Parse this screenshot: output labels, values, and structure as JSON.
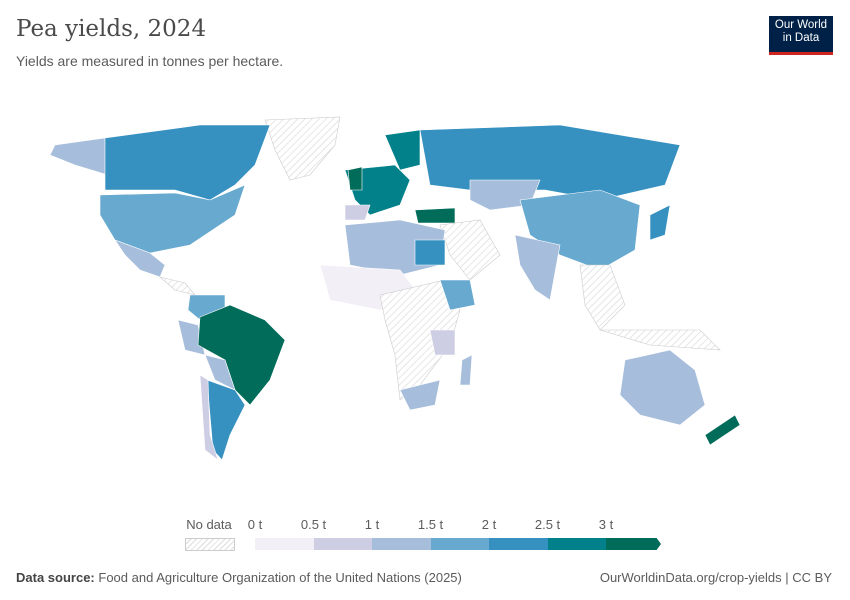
{
  "header": {
    "title": "Pea yields, 2024",
    "subtitle": "Yields are measured in tonnes per hectare.",
    "logo": "Our World in Data"
  },
  "legend": {
    "no_data_label": "No data",
    "labels": [
      "0 t",
      "0.5 t",
      "1 t",
      "1.5 t",
      "2 t",
      "2.5 t",
      "3 t"
    ],
    "colors": [
      "#f2eff7",
      "#cdcde4",
      "#a6bddb",
      "#67a9cf",
      "#3690c0",
      "#02818a",
      "#016c59"
    ],
    "no_data_color": "#e0e0e0"
  },
  "map_regions": [
    {
      "name": "Canada",
      "bin": 4
    },
    {
      "name": "United States",
      "bin": 3
    },
    {
      "name": "Mexico",
      "bin": 2
    },
    {
      "name": "Brazil",
      "bin": 6
    },
    {
      "name": "Argentina",
      "bin": 4
    },
    {
      "name": "Russia",
      "bin": 4
    },
    {
      "name": "China",
      "bin": 3
    },
    {
      "name": "India",
      "bin": 2
    },
    {
      "name": "Australia",
      "bin": 2
    },
    {
      "name": "New Zealand",
      "bin": 6
    },
    {
      "name": "United Kingdom",
      "bin": 6
    },
    {
      "name": "Turkey",
      "bin": 6
    },
    {
      "name": "Ethiopia",
      "bin": 3
    },
    {
      "name": "Egypt",
      "bin": 4
    },
    {
      "name": "Japan",
      "bin": 4
    },
    {
      "name": "Kazakhstan",
      "bin": 2
    }
  ],
  "footer": {
    "source_label": "Data source:",
    "source": "Food and Agriculture Organization of the United Nations (2025)",
    "link": "OurWorldinData.org/crop-yields | CC BY"
  }
}
